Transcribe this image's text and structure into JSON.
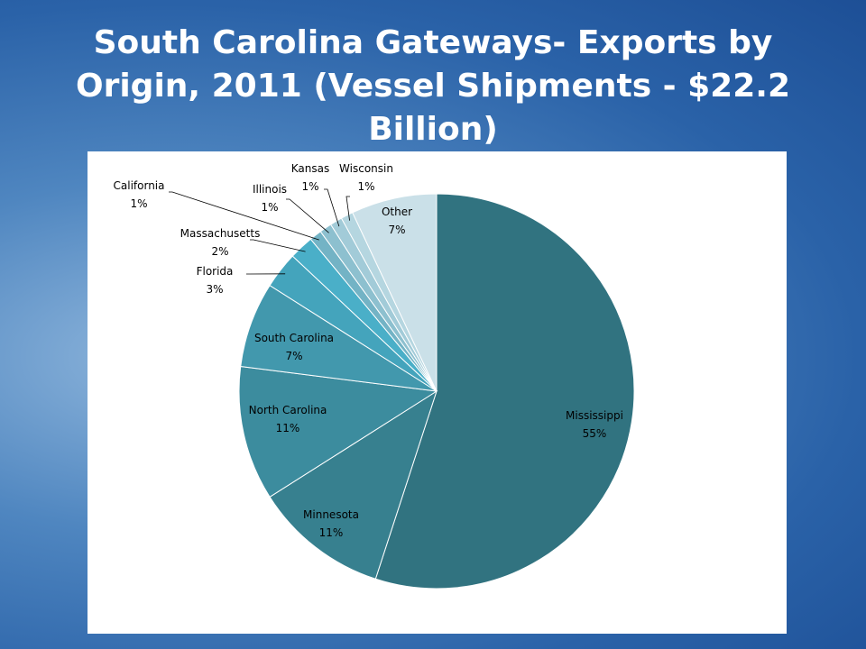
{
  "slide": {
    "title": "South Carolina Gateways- Exports by Origin, 2011 (Vessel Shipments - $22.2 Billion)"
  },
  "chart_data": {
    "type": "pie",
    "title": "",
    "start_angle_deg": 0,
    "direction": "clockwise",
    "categories": [
      "Mississippi",
      "Minnesota",
      "North Carolina",
      "South Carolina",
      "Florida",
      "Massachusetts",
      "California",
      "Illinois",
      "Kansas",
      "Wisconsin",
      "Other"
    ],
    "values": [
      55,
      11,
      11,
      7,
      3,
      2,
      1,
      1,
      1,
      1,
      7
    ],
    "labels": [
      "55%",
      "11%",
      "11%",
      "7%",
      "3%",
      "2%",
      "1%",
      "1%",
      "1%",
      "1%",
      "7%"
    ],
    "colors": [
      "#317380",
      "#37808f",
      "#3c8c9e",
      "#4298ad",
      "#44a4bc",
      "#4aafc8",
      "#73b3c5",
      "#8dc0cf",
      "#a2cbd8",
      "#b5d6e0",
      "#cae0e8"
    ]
  }
}
